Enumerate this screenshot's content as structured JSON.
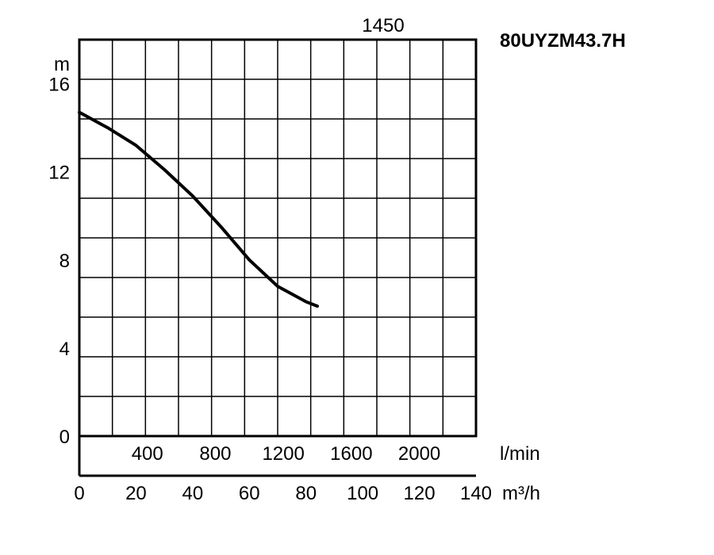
{
  "chart_data": {
    "type": "line",
    "title": "80UYZM43.7H",
    "speed_label": "1450",
    "ylabel": "m",
    "ylim": [
      0,
      18
    ],
    "yticks": [
      0,
      4,
      8,
      12,
      16
    ],
    "xlabel_m3h": "m³/h",
    "xlim_m3h": [
      0,
      140
    ],
    "xticks_m3h": [
      0,
      20,
      40,
      60,
      80,
      100,
      120,
      140
    ],
    "xlabel_lmin": "l/min",
    "xticks_lmin": [
      400,
      800,
      1200,
      1600,
      2000
    ],
    "grid": true,
    "series": [
      {
        "x": [
          0,
          10,
          20,
          30,
          40,
          50,
          60,
          70,
          80,
          84
        ],
        "values": [
          14.7,
          14.0,
          13.2,
          12.1,
          10.9,
          9.5,
          8.0,
          6.8,
          5.9,
          5.9
        ]
      }
    ]
  }
}
